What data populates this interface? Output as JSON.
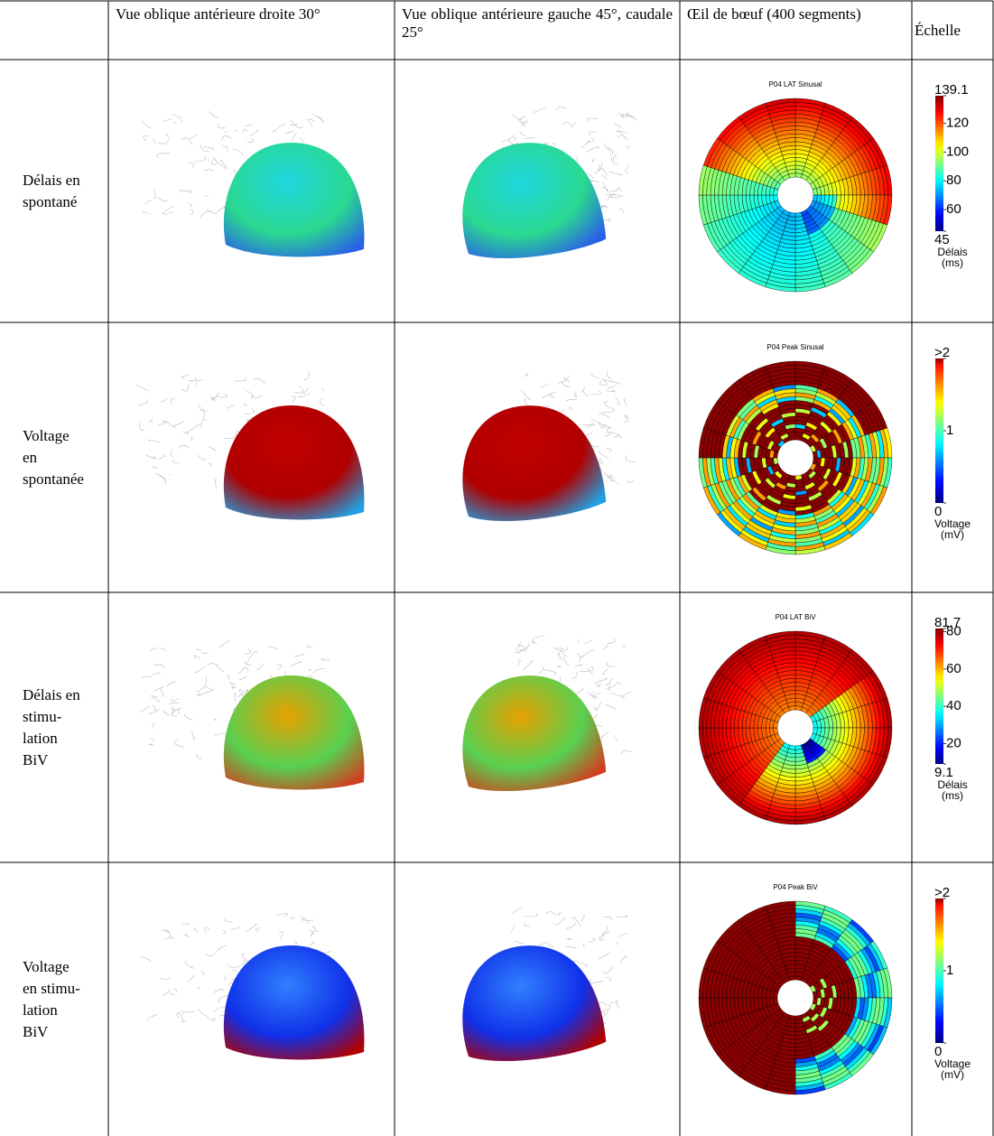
{
  "header": [
    "Vue oblique antérieure droite 30°",
    "Vue oblique antérieure gauche 45°, caudale 25°",
    "Œil de bœuf (400 seg­ments)",
    "Échelle"
  ],
  "rows": [
    {
      "label": "Délais en spon­tané",
      "bullseye_title": "P04 LAT Sinusal",
      "scale": {
        "ticks": [
          139.1,
          120,
          100,
          80,
          60,
          45
        ],
        "unit": [
          "Délais",
          "(ms)"
        ]
      }
    },
    {
      "label": "Voltage en sponta­née",
      "bullseye_title": "P04 Peak Sinusal",
      "scale": {
        "ticks": [
          {
            "value": 2,
            "label": ">2"
          },
          1,
          0
        ],
        "unit": [
          "Voltage",
          "(mV)"
        ]
      }
    },
    {
      "label": "Délais en stimu­lation BiV",
      "bullseye_title": "P04 LAT BiV",
      "scale": {
        "ticks": [
          81.7,
          80,
          60,
          40,
          20,
          9.1
        ],
        "unit": [
          "Délais",
          "(ms)"
        ]
      }
    },
    {
      "label": "Voltage en stimu­lation BiV",
      "bullseye_title": "P04 Peak BiV",
      "scale": {
        "ticks": [
          {
            "value": 2,
            "label": ">2"
          },
          1,
          0
        ],
        "unit": [
          "Voltage",
          "(mV)"
        ]
      }
    }
  ]
}
